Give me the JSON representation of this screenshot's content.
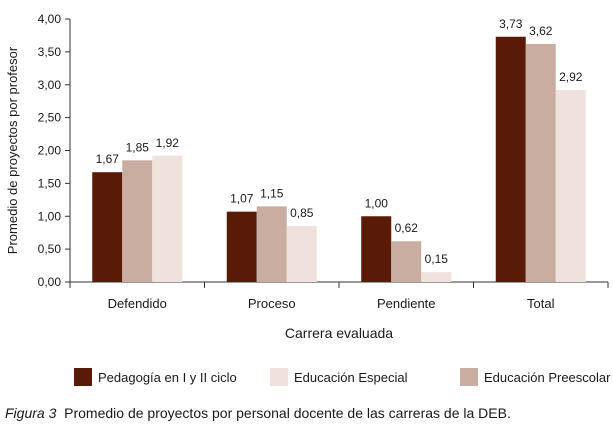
{
  "chart_data": {
    "type": "bar",
    "categories": [
      "Defendido",
      "Proceso",
      "Pendiente",
      "Total"
    ],
    "series": [
      {
        "name": "Pedagogía en I y II ciclo",
        "color": "#5a1a08",
        "values": [
          1.67,
          1.07,
          1.0,
          3.73
        ],
        "labels": [
          "1,67",
          "1,07",
          "1,00",
          "3,73"
        ]
      },
      {
        "name": "Educación Preescolar",
        "color": "#c9ada0",
        "values": [
          1.85,
          1.15,
          0.62,
          3.62
        ],
        "labels": [
          "1,85",
          "1,15",
          "0,62",
          "3,62"
        ]
      },
      {
        "name": "Educación Especial",
        "color": "#efe2dc",
        "values": [
          1.92,
          0.85,
          0.15,
          2.92
        ],
        "labels": [
          "1,92",
          "0,85",
          "0,15",
          "2,92"
        ]
      }
    ],
    "legend_order": [
      "Pedagogía en I y II ciclo",
      "Educación Especial",
      "Educación Preescolar"
    ],
    "xlabel": "Carrera evaluada",
    "ylabel": "Promedio de proyectos por profesor",
    "ylim": [
      0,
      4
    ],
    "yticks": [
      0,
      0.5,
      1,
      1.5,
      2,
      2.5,
      3,
      3.5,
      4
    ],
    "ytick_labels": [
      "0,00",
      "0,50",
      "1,00",
      "1,50",
      "2,00",
      "2,50",
      "3,00",
      "3,50",
      "4,00"
    ],
    "grid": false,
    "legend_position": "bottom"
  },
  "caption": {
    "prefix": "Figura 3",
    "text": "Promedio de proyectos por personal docente de las carreras de la DEB."
  }
}
